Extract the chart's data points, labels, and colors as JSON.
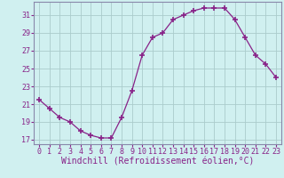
{
  "x": [
    0,
    1,
    2,
    3,
    4,
    5,
    6,
    7,
    8,
    9,
    10,
    11,
    12,
    13,
    14,
    15,
    16,
    17,
    18,
    19,
    20,
    21,
    22,
    23
  ],
  "y": [
    21.5,
    20.5,
    19.5,
    19.0,
    18.0,
    17.5,
    17.2,
    17.2,
    19.5,
    22.5,
    26.5,
    28.5,
    29.0,
    30.5,
    31.0,
    31.5,
    31.8,
    31.8,
    31.8,
    30.5,
    28.5,
    26.5,
    25.5,
    24.0
  ],
  "line_color": "#882288",
  "marker": "+",
  "marker_size": 4,
  "bg_color": "#d0f0f0",
  "grid_color": "#aacccc",
  "xlabel": "Windchill (Refroidissement éolien,°C)",
  "xlabel_fontsize": 7,
  "tick_color": "#882288",
  "ylim": [
    16.5,
    32.5
  ],
  "yticks": [
    17,
    19,
    21,
    23,
    25,
    27,
    29,
    31
  ],
  "xticks": [
    0,
    1,
    2,
    3,
    4,
    5,
    6,
    7,
    8,
    9,
    10,
    11,
    12,
    13,
    14,
    15,
    16,
    17,
    18,
    19,
    20,
    21,
    22,
    23
  ],
  "tick_fontsize": 6,
  "spine_color": "#8888aa"
}
